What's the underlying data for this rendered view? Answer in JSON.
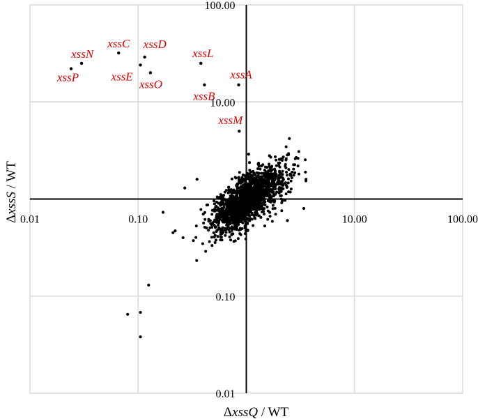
{
  "chart_data": {
    "type": "scatter",
    "x_axis": {
      "label_prefix": "Δ",
      "label_italic": "xssQ",
      "label_suffix": " / WT",
      "scale": "log",
      "range": [
        0.01,
        100
      ],
      "ticks": [
        "0.01",
        "0.10",
        "10.00",
        "100.00"
      ]
    },
    "y_axis": {
      "label_prefix": "Δ",
      "label_italic": "xssS",
      "label_suffix": " / WT",
      "scale": "log",
      "range": [
        0.01,
        100
      ],
      "ticks": [
        "100.00",
        "10.00",
        "0.10",
        "0.01"
      ]
    },
    "grid": true,
    "cross_axes_at": [
      1,
      1
    ],
    "label_color": "#e00000",
    "point_color": "#000000",
    "labeled_points": [
      {
        "label": "xssP",
        "x": 0.024,
        "y": 22
      },
      {
        "label": "xssN",
        "x": 0.03,
        "y": 25
      },
      {
        "label": "xssC",
        "x": 0.066,
        "y": 32
      },
      {
        "label": "xssD",
        "x": 0.115,
        "y": 29
      },
      {
        "label": "xssE",
        "x": 0.105,
        "y": 24
      },
      {
        "label": "xssO",
        "x": 0.13,
        "y": 20
      },
      {
        "label": "xssL",
        "x": 0.38,
        "y": 25
      },
      {
        "label": "xssB",
        "x": 0.41,
        "y": 15
      },
      {
        "label": "xssA",
        "x": 0.85,
        "y": 15
      },
      {
        "label": "xssM",
        "x": 0.86,
        "y": 5
      }
    ],
    "outlier_points": [
      {
        "x": 0.08,
        "y": 0.065
      },
      {
        "x": 0.105,
        "y": 0.068
      },
      {
        "x": 0.105,
        "y": 0.038
      },
      {
        "x": 0.125,
        "y": 0.13
      },
      {
        "x": 0.17,
        "y": 0.73
      },
      {
        "x": 0.21,
        "y": 0.45
      },
      {
        "x": 0.22,
        "y": 0.47
      },
      {
        "x": 0.26,
        "y": 0.4
      },
      {
        "x": 0.4,
        "y": 0.7
      },
      {
        "x": 1.05,
        "y": 2.9
      },
      {
        "x": 2.5,
        "y": 4.2
      },
      {
        "x": 3.4,
        "y": 0.8
      },
      {
        "x": 2.4,
        "y": 0.6
      },
      {
        "x": 0.27,
        "y": 1.3
      },
      {
        "x": 0.35,
        "y": 1.6
      }
    ],
    "cloud": {
      "count": 1600,
      "center_x": 1.05,
      "center_y": 1.0,
      "spread_log10": 0.17,
      "correlation": 0.7,
      "seed": 7
    }
  }
}
